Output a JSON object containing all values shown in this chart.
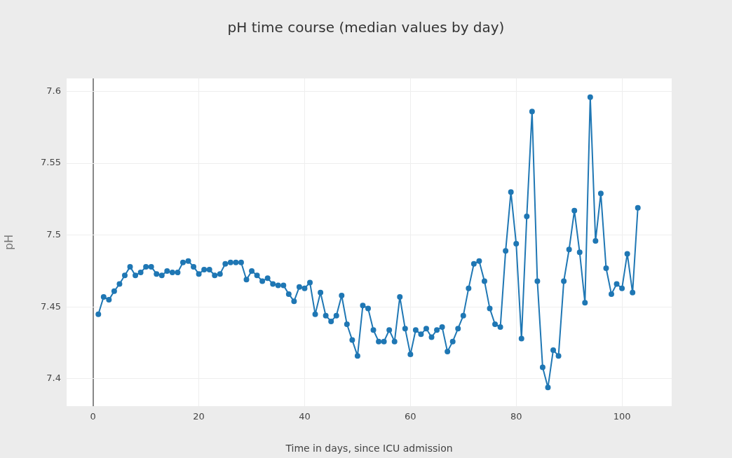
{
  "chart_data": {
    "type": "line",
    "title": "pH time course (median values by day)",
    "xlabel": "Time in days, since ICU admission",
    "ylabel": "pH",
    "x": [
      1,
      2,
      3,
      4,
      5,
      6,
      7,
      8,
      9,
      10,
      11,
      12,
      13,
      14,
      15,
      16,
      17,
      18,
      19,
      20,
      21,
      22,
      23,
      24,
      25,
      26,
      27,
      28,
      29,
      30,
      31,
      32,
      33,
      34,
      35,
      36,
      37,
      38,
      39,
      40,
      41,
      42,
      43,
      44,
      45,
      46,
      47,
      48,
      49,
      50,
      51,
      52,
      53,
      54,
      55,
      56,
      57,
      58,
      59,
      60,
      61,
      62,
      63,
      64,
      65,
      66,
      67,
      68,
      69,
      70,
      71,
      72,
      73,
      74,
      75,
      76,
      77,
      78,
      79,
      80,
      81,
      82,
      83,
      84,
      85,
      86,
      87,
      88,
      89,
      90,
      91,
      92,
      93,
      94,
      95,
      96,
      97,
      98,
      99,
      100,
      101,
      102,
      103
    ],
    "series": [
      {
        "color": "#1f77b4",
        "values": [
          7.445,
          7.457,
          7.455,
          7.461,
          7.466,
          7.472,
          7.478,
          7.472,
          7.474,
          7.478,
          7.478,
          7.473,
          7.472,
          7.475,
          7.474,
          7.474,
          7.481,
          7.482,
          7.478,
          7.473,
          7.476,
          7.476,
          7.472,
          7.473,
          7.48,
          7.481,
          7.481,
          7.481,
          7.469,
          7.475,
          7.472,
          7.468,
          7.47,
          7.466,
          7.465,
          7.465,
          7.459,
          7.454,
          7.464,
          7.463,
          7.467,
          7.445,
          7.46,
          7.444,
          7.44,
          7.444,
          7.458,
          7.438,
          7.427,
          7.416,
          7.451,
          7.449,
          7.434,
          7.426,
          7.426,
          7.434,
          7.426,
          7.457,
          7.435,
          7.417,
          7.434,
          7.431,
          7.435,
          7.429,
          7.434,
          7.436,
          7.419,
          7.426,
          7.435,
          7.444,
          7.463,
          7.48,
          7.482,
          7.468,
          7.449,
          7.438,
          7.436,
          7.489,
          7.53,
          7.494,
          7.428,
          7.513,
          7.586,
          7.468,
          7.408,
          7.394,
          7.42,
          7.416,
          7.468,
          7.49,
          7.517,
          7.488,
          7.453,
          7.596,
          7.496,
          7.529,
          7.477,
          7.459,
          7.466,
          7.463,
          7.487,
          7.46,
          7.519
        ]
      }
    ],
    "xlim": [
      -5,
      109.4
    ],
    "xticks": [
      0,
      20,
      40,
      60,
      80,
      100
    ],
    "ylim": [
      7.381,
      7.609
    ],
    "yticks": [
      7.4,
      7.45,
      7.5,
      7.55,
      7.6
    ],
    "grid": true,
    "marker": "circle",
    "line_style": "solid",
    "legend": false
  }
}
